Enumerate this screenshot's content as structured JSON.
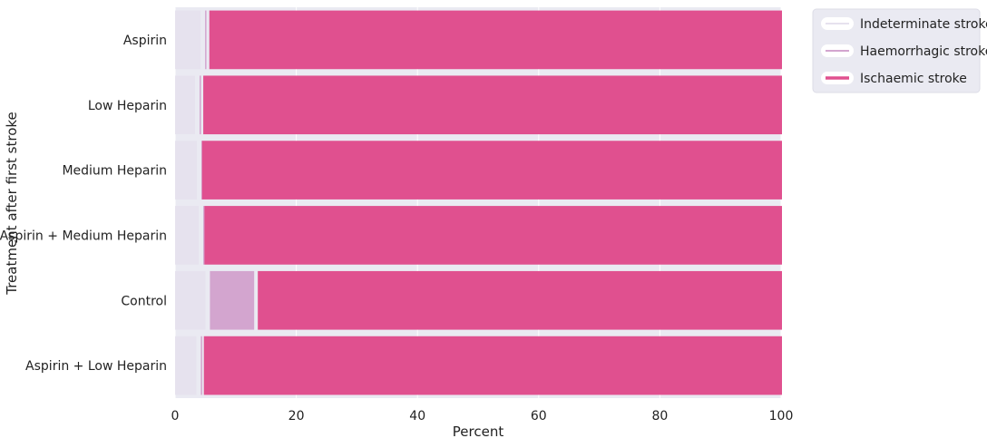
{
  "chart_data": {
    "type": "bar",
    "orientation": "horizontal",
    "stacked": true,
    "title": "",
    "xlabel": "Percent",
    "ylabel": "Treatment after first stroke",
    "xlim": [
      0,
      100
    ],
    "xticks": [
      "0",
      "20",
      "40",
      "60",
      "80",
      "100"
    ],
    "grid": true,
    "legend_placement": "outside-top-right",
    "categories": [
      "Aspirin",
      "Low Heparin",
      "Medium Heparin",
      "Aspirin + Medium Heparin",
      "Control",
      "Aspirin + Low Heparin"
    ],
    "series": [
      {
        "name": "Indeterminate stroke",
        "color": "#e6e2ee",
        "values": [
          4.8,
          3.9,
          4.2,
          4.5,
          5.6,
          4.1
        ]
      },
      {
        "name": "Haemorrhagic stroke",
        "color": "#d3a5cf",
        "values": [
          0.7,
          0.6,
          0.1,
          0.2,
          7.9,
          0.5
        ]
      },
      {
        "name": "Ischaemic stroke",
        "color": "#e0508f",
        "values": [
          94.5,
          95.5,
          95.7,
          95.3,
          86.5,
          95.4
        ]
      }
    ]
  }
}
